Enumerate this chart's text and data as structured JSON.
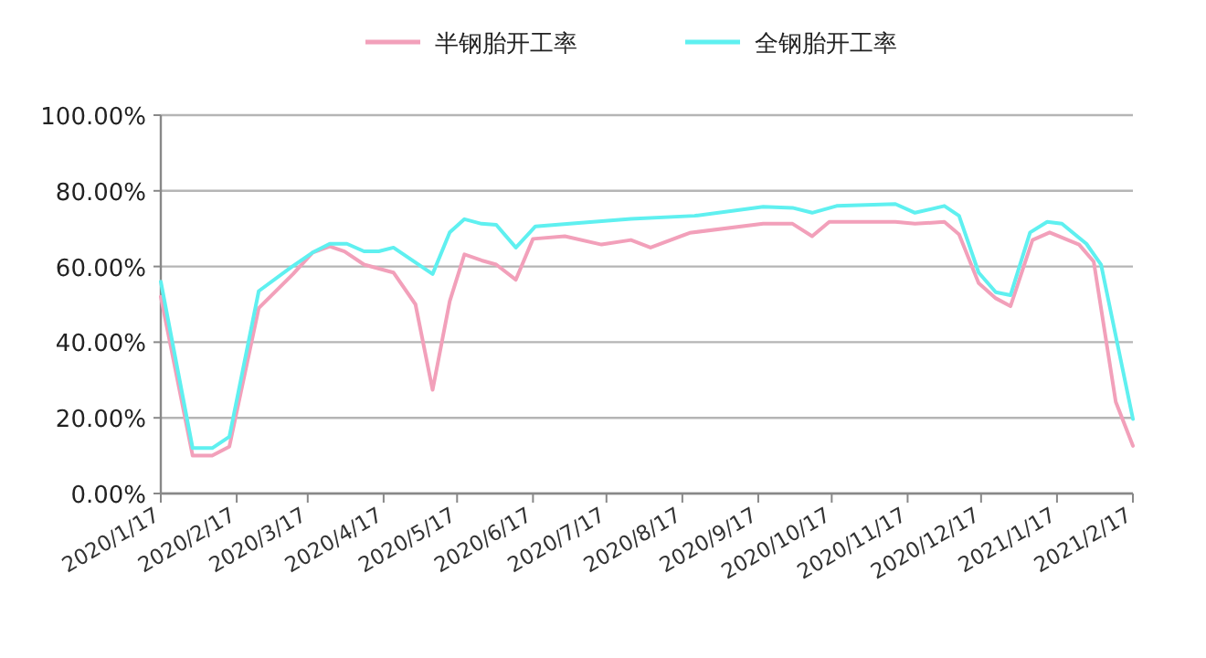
{
  "chart_data": {
    "type": "line",
    "legend": "top",
    "grid": "y",
    "xlim": [
      "2020-01-17",
      "2021-02-17"
    ],
    "xticks": [
      {
        "value": "2020-01-17",
        "label": "2020/1/17"
      },
      {
        "value": "2020-02-17",
        "label": "2020/2/17"
      },
      {
        "value": "2020-03-17",
        "label": "2020/3/17"
      },
      {
        "value": "2020-04-17",
        "label": "2020/4/17"
      },
      {
        "value": "2020-05-17",
        "label": "2020/5/17"
      },
      {
        "value": "2020-06-17",
        "label": "2020/6/17"
      },
      {
        "value": "2020-07-17",
        "label": "2020/7/17"
      },
      {
        "value": "2020-08-17",
        "label": "2020/8/17"
      },
      {
        "value": "2020-09-17",
        "label": "2020/9/17"
      },
      {
        "value": "2020-10-17",
        "label": "2020/10/17"
      },
      {
        "value": "2020-11-17",
        "label": "2020/11/17"
      },
      {
        "value": "2020-12-17",
        "label": "2020/12/17"
      },
      {
        "value": "2021-01-17",
        "label": "2021/1/17"
      },
      {
        "value": "2021-02-17",
        "label": "2021/2/17"
      }
    ],
    "ylim": [
      0,
      100
    ],
    "yticks": [
      {
        "value": 0,
        "label": "0.00%"
      },
      {
        "value": 20,
        "label": "20.00%"
      },
      {
        "value": 40,
        "label": "40.00%"
      },
      {
        "value": 60,
        "label": "60.00%"
      },
      {
        "value": 80,
        "label": "80.00%"
      },
      {
        "value": 100,
        "label": "100.00%"
      }
    ],
    "series": [
      {
        "name": "半钢胎开工率",
        "color": "#f2a0ba",
        "x": [
          "2020-01-17",
          "2020-01-30",
          "2020-02-07",
          "2020-02-14",
          "2020-02-26",
          "2020-03-11",
          "2020-03-19",
          "2020-03-26",
          "2020-04-01",
          "2020-04-09",
          "2020-04-21",
          "2020-04-30",
          "2020-05-07",
          "2020-05-14",
          "2020-05-20",
          "2020-05-27",
          "2020-06-02",
          "2020-06-10",
          "2020-06-17",
          "2020-06-30",
          "2020-07-15",
          "2020-07-27",
          "2020-08-04",
          "2020-08-20",
          "2020-09-19",
          "2020-10-01",
          "2020-10-09",
          "2020-10-16",
          "2020-11-12",
          "2020-11-20",
          "2020-12-02",
          "2020-12-08",
          "2020-12-16",
          "2020-12-23",
          "2020-12-29",
          "2021-01-07",
          "2021-01-14",
          "2021-01-26",
          "2021-02-01",
          "2021-02-10",
          "2021-02-17"
        ],
        "values": [
          52,
          10,
          10,
          12.4,
          49,
          58,
          63.7,
          65.3,
          64,
          60.5,
          58.4,
          50,
          27.4,
          50.8,
          63.2,
          61.6,
          60.5,
          56.5,
          67.3,
          68,
          65.8,
          67,
          65,
          68.9,
          71.3,
          71.3,
          68,
          71.8,
          71.8,
          71.3,
          71.8,
          68.5,
          55.6,
          51.6,
          49.5,
          67,
          69,
          65.8,
          61.3,
          24.2,
          12.6
        ]
      },
      {
        "name": "全钢胎开工率",
        "color": "#5ff0f0",
        "x": [
          "2020-01-17",
          "2020-01-30",
          "2020-02-07",
          "2020-02-14",
          "2020-02-26",
          "2020-03-10",
          "2020-03-19",
          "2020-03-26",
          "2020-04-02",
          "2020-04-09",
          "2020-04-15",
          "2020-04-21",
          "2020-05-07",
          "2020-05-14",
          "2020-05-20",
          "2020-05-27",
          "2020-06-02",
          "2020-06-10",
          "2020-06-18",
          "2020-07-02",
          "2020-07-27",
          "2020-08-22",
          "2020-09-19",
          "2020-10-01",
          "2020-10-09",
          "2020-10-19",
          "2020-11-12",
          "2020-11-20",
          "2020-12-02",
          "2020-12-08",
          "2020-12-16",
          "2020-12-23",
          "2020-12-29",
          "2021-01-06",
          "2021-01-13",
          "2021-01-19",
          "2021-01-29",
          "2021-02-04",
          "2021-02-17"
        ],
        "values": [
          56,
          12,
          12,
          15,
          53.5,
          59.7,
          63.7,
          66,
          66,
          64,
          64,
          65,
          58,
          69,
          72.5,
          71.3,
          71,
          65,
          70.6,
          71.3,
          72.6,
          73.4,
          75.8,
          75.5,
          74.2,
          76,
          76.5,
          74.2,
          76,
          73.4,
          58.4,
          53.2,
          52.4,
          69,
          71.8,
          71.3,
          66,
          60.5,
          19.7
        ]
      }
    ]
  }
}
